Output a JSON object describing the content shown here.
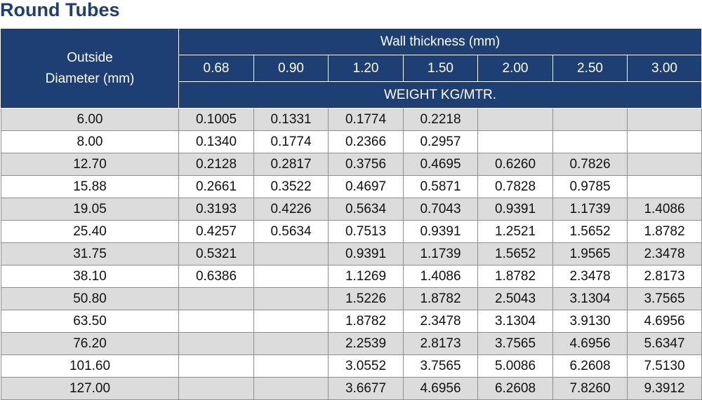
{
  "title": "Round Tubes",
  "table": {
    "outside_diameter_header": [
      "Outside",
      "Diameter (mm)"
    ],
    "wall_thickness_header": "Wall thickness (mm)",
    "weight_header": "WEIGHT KG/MTR.",
    "thickness_columns": [
      "0.68",
      "0.90",
      "1.20",
      "1.50",
      "2.00",
      "2.50",
      "3.00"
    ],
    "rows": [
      {
        "diameter": "6.00",
        "values": [
          "0.1005",
          "0.1331",
          "0.1774",
          "0.2218",
          "",
          "",
          ""
        ]
      },
      {
        "diameter": "8.00",
        "values": [
          "0.1340",
          "0.1774",
          "0.2366",
          "0.2957",
          "",
          "",
          ""
        ]
      },
      {
        "diameter": "12.70",
        "values": [
          "0.2128",
          "0.2817",
          "0.3756",
          "0.4695",
          "0.6260",
          "0.7826",
          ""
        ]
      },
      {
        "diameter": "15.88",
        "values": [
          "0.2661",
          "0.3522",
          "0.4697",
          "0.5871",
          "0.7828",
          "0.9785",
          ""
        ]
      },
      {
        "diameter": "19.05",
        "values": [
          "0.3193",
          "0.4226",
          "0.5634",
          "0.7043",
          "0.9391",
          "1.1739",
          "1.4086"
        ]
      },
      {
        "diameter": "25.40",
        "values": [
          "0.4257",
          "0.5634",
          "0.7513",
          "0.9391",
          "1.2521",
          "1.5652",
          "1.8782"
        ]
      },
      {
        "diameter": "31.75",
        "values": [
          "0.5321",
          "",
          "0.9391",
          "1.1739",
          "1.5652",
          "1.9565",
          "2.3478"
        ]
      },
      {
        "diameter": "38.10",
        "values": [
          "0.6386",
          "",
          "1.1269",
          "1.4086",
          "1.8782",
          "2.3478",
          "2.8173"
        ]
      },
      {
        "diameter": "50.80",
        "values": [
          "",
          "",
          "1.5226",
          "1.8782",
          "2.5043",
          "3.1304",
          "3.7565"
        ]
      },
      {
        "diameter": "63.50",
        "values": [
          "",
          "",
          "1.8782",
          "2.3478",
          "3.1304",
          "3.9130",
          "4.6956"
        ]
      },
      {
        "diameter": "76.20",
        "values": [
          "",
          "",
          "2.2539",
          "2.8173",
          "3.7565",
          "4.6956",
          "5.6347"
        ]
      },
      {
        "diameter": "101.60",
        "values": [
          "",
          "",
          "3.0552",
          "3.7565",
          "5.0086",
          "6.2608",
          "7.5130"
        ]
      },
      {
        "diameter": "127.00",
        "values": [
          "",
          "",
          "3.6677",
          "4.6956",
          "6.2608",
          "7.8260",
          "9.3912"
        ]
      }
    ]
  },
  "colors": {
    "header_bg": "#1e3f73",
    "title_text": "#1e3f73",
    "stripe": "#dcdcdc"
  }
}
